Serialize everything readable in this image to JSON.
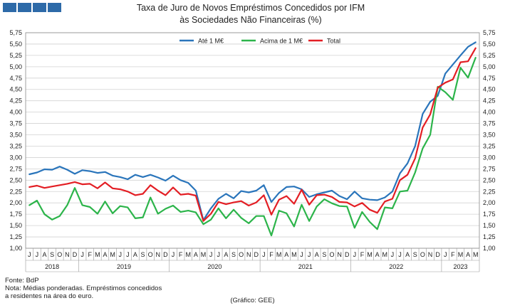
{
  "chart_data": {
    "type": "line",
    "title_lines": [
      "Taxa de Juro de Novos Empréstimos  Concedidos por IFM",
      "às Sociedades Não Financeiras (%)"
    ],
    "ylim": [
      1.0,
      5.75
    ],
    "yticks": [
      "1,00",
      "1,25",
      "1,50",
      "1,75",
      "2,00",
      "2,25",
      "2,50",
      "2,75",
      "3,00",
      "3,25",
      "3,50",
      "3,75",
      "4,00",
      "4,25",
      "4,50",
      "4,75",
      "5,00",
      "5,25",
      "5,50",
      "5,75"
    ],
    "months": [
      "J",
      "J",
      "A",
      "S",
      "O",
      "N",
      "D",
      "J",
      "F",
      "M",
      "A",
      "M",
      "J",
      "J",
      "A",
      "S",
      "O",
      "N",
      "D",
      "J",
      "F",
      "M",
      "A",
      "M",
      "J",
      "J",
      "A",
      "S",
      "O",
      "N",
      "D",
      "J",
      "F",
      "M",
      "A",
      "M",
      "J",
      "J",
      "A",
      "S",
      "O",
      "N",
      "D",
      "J",
      "F",
      "M",
      "A",
      "M",
      "J",
      "J",
      "A",
      "S",
      "O",
      "N",
      "D",
      "J",
      "F",
      "M",
      "A",
      "M"
    ],
    "years": [
      {
        "label": "2018",
        "start": 0,
        "end": 6
      },
      {
        "label": "2019",
        "start": 7,
        "end": 18
      },
      {
        "label": "2020",
        "start": 19,
        "end": 30
      },
      {
        "label": "2021",
        "start": 31,
        "end": 42
      },
      {
        "label": "2022",
        "start": 43,
        "end": 54
      },
      {
        "label": "2023",
        "start": 55,
        "end": 59
      }
    ],
    "grid": true,
    "legend_position": "top",
    "series": [
      {
        "name": "Até 1 M€",
        "color": "#2a75bb",
        "values": [
          2.63,
          2.67,
          2.74,
          2.73,
          2.8,
          2.73,
          2.64,
          2.72,
          2.7,
          2.66,
          2.68,
          2.6,
          2.57,
          2.52,
          2.62,
          2.57,
          2.62,
          2.56,
          2.49,
          2.6,
          2.5,
          2.44,
          2.27,
          1.62,
          1.88,
          2.09,
          2.2,
          2.1,
          2.26,
          2.23,
          2.27,
          2.39,
          2.02,
          2.22,
          2.35,
          2.36,
          2.3,
          2.13,
          2.19,
          2.23,
          2.27,
          2.15,
          2.08,
          2.25,
          2.1,
          2.07,
          2.06,
          2.12,
          2.25,
          2.65,
          2.87,
          3.25,
          3.96,
          4.23,
          4.36,
          4.85,
          5.05,
          5.25,
          5.44,
          5.54
        ]
      },
      {
        "name": "Acima de 1 M€",
        "color": "#2cb44a",
        "values": [
          1.95,
          2.05,
          1.75,
          1.63,
          1.71,
          1.95,
          2.33,
          1.95,
          1.91,
          1.76,
          2.03,
          1.77,
          1.93,
          1.9,
          1.66,
          1.68,
          2.12,
          1.76,
          1.87,
          1.94,
          1.8,
          1.83,
          1.79,
          1.53,
          1.63,
          1.88,
          1.66,
          1.85,
          1.67,
          1.55,
          1.71,
          1.71,
          1.28,
          1.83,
          1.77,
          1.48,
          1.96,
          1.6,
          1.92,
          2.08,
          1.99,
          1.93,
          1.92,
          1.45,
          1.8,
          1.58,
          1.42,
          1.9,
          1.88,
          2.25,
          2.27,
          2.67,
          3.2,
          3.5,
          4.56,
          4.44,
          4.27,
          4.98,
          4.76,
          5.2
        ]
      },
      {
        "name": "Total",
        "color": "#e31e24",
        "values": [
          2.35,
          2.38,
          2.33,
          2.36,
          2.39,
          2.42,
          2.46,
          2.41,
          2.42,
          2.32,
          2.45,
          2.32,
          2.3,
          2.25,
          2.17,
          2.2,
          2.39,
          2.27,
          2.17,
          2.34,
          2.18,
          2.2,
          2.16,
          1.6,
          1.76,
          2.02,
          1.97,
          2.01,
          2.04,
          1.94,
          2.01,
          2.17,
          1.74,
          2.07,
          2.15,
          1.98,
          2.29,
          1.96,
          2.17,
          2.18,
          2.13,
          2.02,
          2.01,
          1.92,
          2.0,
          1.85,
          1.78,
          2.03,
          2.09,
          2.5,
          2.62,
          2.98,
          3.66,
          3.95,
          4.54,
          4.65,
          4.72,
          5.1,
          5.12,
          5.41
        ]
      }
    ]
  },
  "notes": {
    "source": "Fonte: BdP",
    "note_line1": "Nota: Médias ponderadas. Empréstimos concedidos",
    "note_line2": "a residentes na área do euro.",
    "credit": "(Gráfico: GEE)"
  }
}
